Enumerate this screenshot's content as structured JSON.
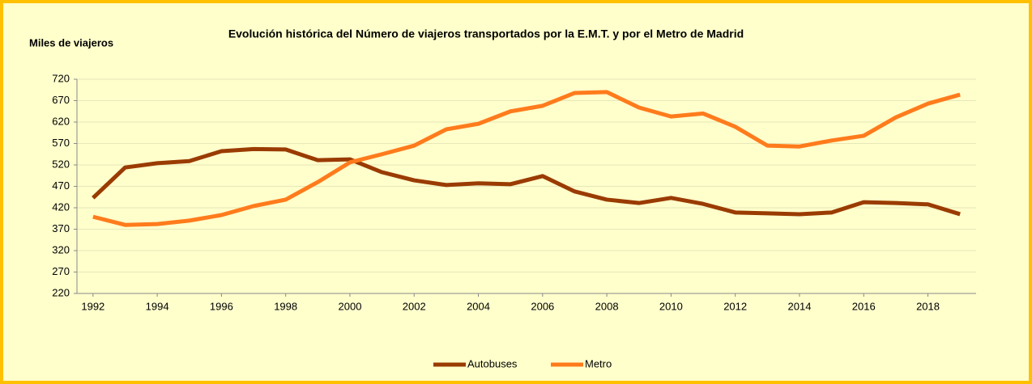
{
  "chart_data": {
    "type": "line",
    "title": "Evolución histórica del Número de viajeros transportados por la E.M.T. y por el Metro de Madrid",
    "y_axis_label": "Miles de viajeros",
    "x": [
      1992,
      1993,
      1994,
      1995,
      1996,
      1997,
      1998,
      1999,
      2000,
      2001,
      2002,
      2003,
      2004,
      2005,
      2006,
      2007,
      2008,
      2009,
      2010,
      2011,
      2012,
      2013,
      2014,
      2015,
      2016,
      2017,
      2018,
      2019
    ],
    "series": [
      {
        "name": "Autobuses",
        "color": "#9a3b00",
        "values": [
          443,
          514,
          524,
          529,
          552,
          557,
          556,
          531,
          533,
          503,
          484,
          473,
          477,
          475,
          494,
          458,
          439,
          431,
          443,
          429,
          409,
          407,
          405,
          409,
          433,
          431,
          428,
          405
        ]
      },
      {
        "name": "Metro",
        "color": "#ff7b1c",
        "values": [
          399,
          380,
          382,
          390,
          403,
          424,
          439,
          480,
          526,
          545,
          565,
          603,
          616,
          645,
          658,
          688,
          690,
          654,
          633,
          640,
          609,
          565,
          563,
          577,
          588,
          631,
          663,
          684
        ]
      }
    ],
    "xlim": [
      1991.5,
      2019.5
    ],
    "xticks": [
      1992,
      1994,
      1996,
      1998,
      2000,
      2002,
      2004,
      2006,
      2008,
      2010,
      2012,
      2014,
      2016,
      2018
    ],
    "ylim": [
      220,
      720
    ],
    "yticks": [
      220,
      270,
      320,
      370,
      420,
      470,
      520,
      570,
      620,
      670,
      720
    ],
    "grid": true,
    "legend": "bottom"
  }
}
